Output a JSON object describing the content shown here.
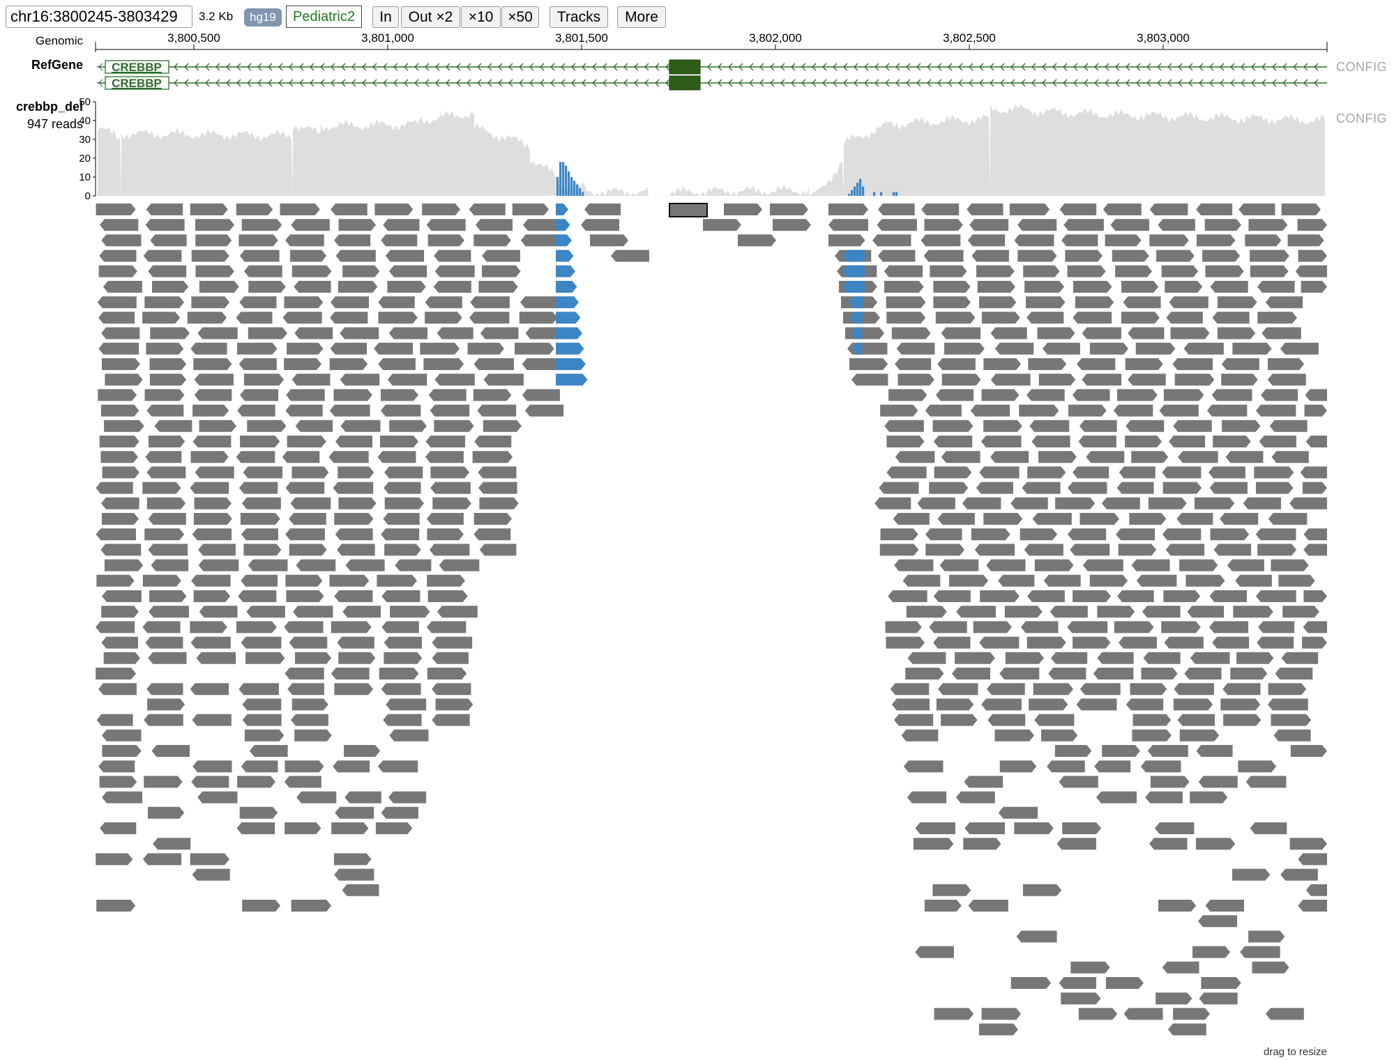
{
  "toolbar": {
    "position": "chr16:3800245-3803429",
    "span": "3.2 Kb",
    "genome": "hg19",
    "dataset": "Pediatric2",
    "zoom_in": "In",
    "zoom_out_2": "Out ×2",
    "zoom_out_10": "×10",
    "zoom_out_50": "×50",
    "tracks": "Tracks",
    "more": "More"
  },
  "ruler": {
    "label": "Genomic",
    "ticks": [
      "3,800,500",
      "3,801,000",
      "3,801,500",
      "3,802,000",
      "3,802,500",
      "3,803,000"
    ]
  },
  "refgene": {
    "label": "RefGene",
    "config": "CONFIG",
    "isoforms": [
      {
        "name": "CREBBP"
      },
      {
        "name": "CREBBP"
      }
    ]
  },
  "bam_track": {
    "name": "crebbp_del",
    "read_count": "947 reads",
    "config": "CONFIG",
    "coverage_axis": [
      "50",
      "40",
      "30",
      "20",
      "10",
      "0"
    ],
    "colors": {
      "read": "#777777",
      "softclip": "#3d86c6",
      "coverage": "#dedede",
      "gene": "#2a6e2a",
      "exon": "#2e5e16"
    }
  },
  "footer": {
    "resize_hint": "drag to resize"
  }
}
